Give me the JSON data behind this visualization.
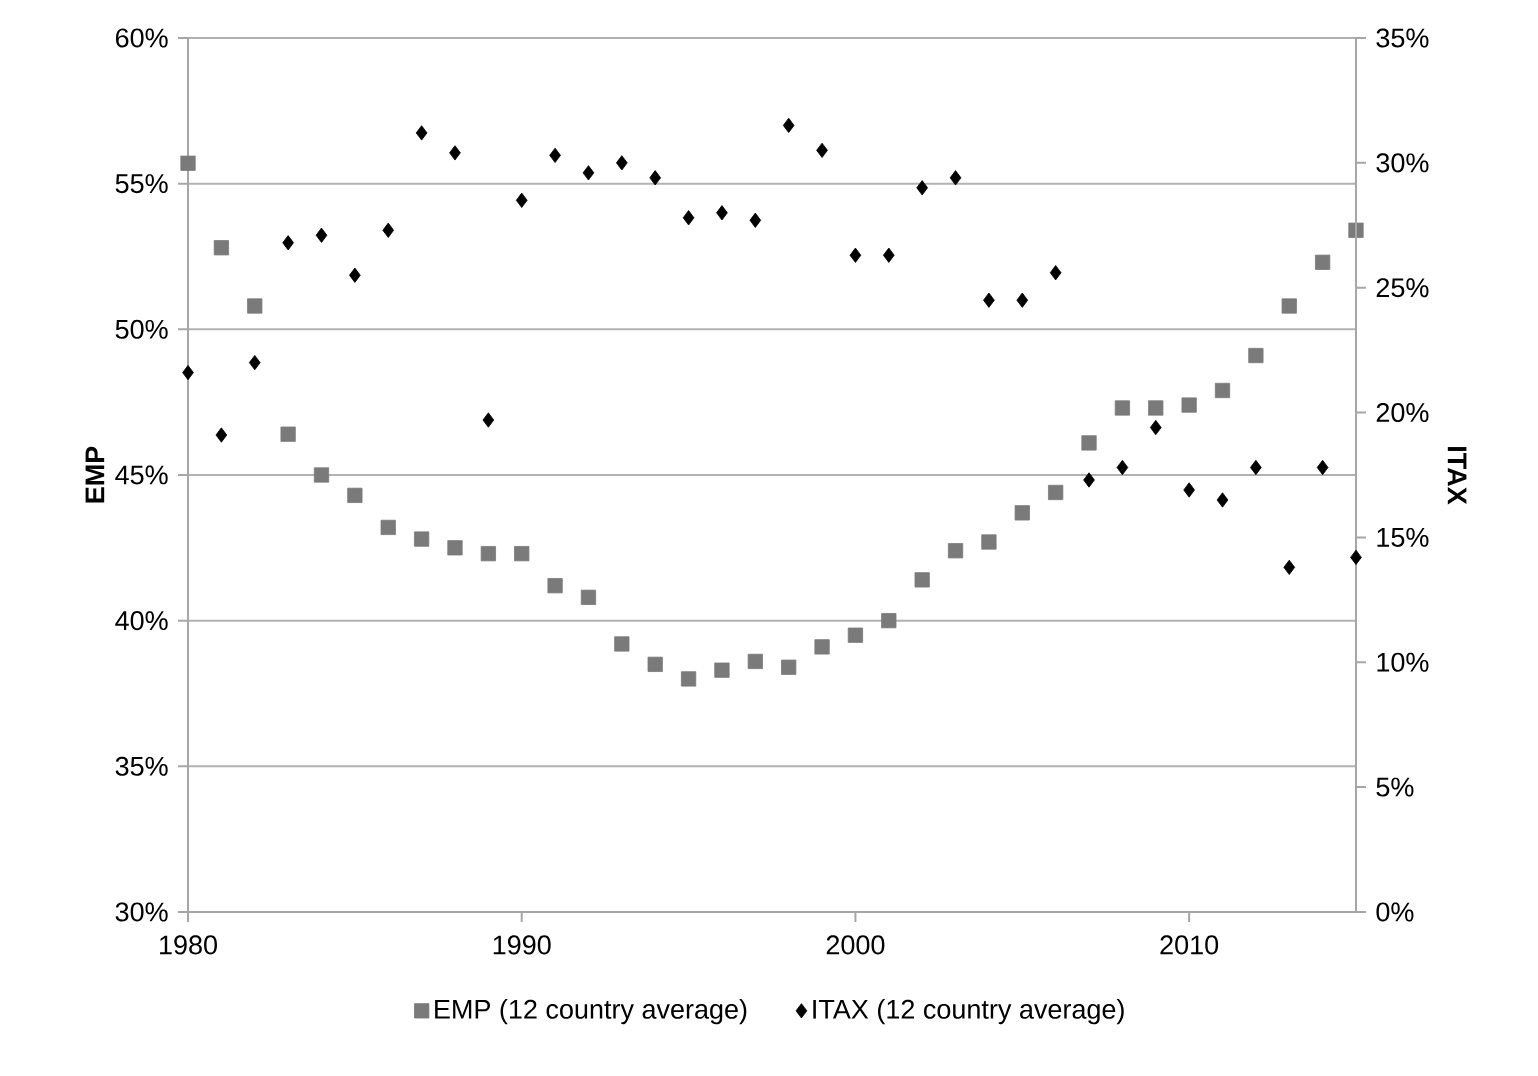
{
  "chart_data": {
    "type": "scatter",
    "ylabel": "EMP",
    "y2label": "ITAX",
    "x": [
      1980,
      1981,
      1982,
      1983,
      1984,
      1985,
      1986,
      1987,
      1988,
      1989,
      1990,
      1991,
      1992,
      1993,
      1994,
      1995,
      1996,
      1997,
      1998,
      1999,
      2000,
      2001,
      2002,
      2003,
      2004,
      2005,
      2006,
      2007,
      2008,
      2009,
      2010,
      2011,
      2012,
      2013,
      2014,
      2015
    ],
    "series": [
      {
        "name": "EMP (12 country average)",
        "color": "#7a7a7a",
        "marker": "square",
        "axis": "y",
        "values": [
          55.7,
          52.8,
          50.8,
          46.4,
          45.0,
          44.3,
          43.2,
          42.8,
          42.5,
          42.3,
          42.3,
          41.2,
          40.8,
          39.2,
          38.5,
          38.0,
          38.3,
          38.6,
          38.4,
          39.1,
          39.5,
          40.0,
          41.4,
          42.4,
          42.7,
          43.7,
          44.4,
          46.1,
          47.3,
          47.3,
          47.4,
          47.9,
          49.1,
          50.8,
          52.3,
          53.4
        ]
      },
      {
        "name": "ITAX (12 country average)",
        "color": "#000000",
        "marker": "diamond",
        "axis": "y2",
        "values": [
          21.6,
          19.1,
          22.0,
          26.8,
          27.1,
          25.5,
          27.3,
          31.2,
          30.4,
          19.7,
          28.5,
          30.3,
          29.6,
          30.0,
          29.4,
          27.8,
          28.0,
          27.7,
          31.5,
          30.5,
          26.3,
          26.3,
          29.0,
          29.4,
          24.5,
          24.5,
          25.6,
          17.3,
          17.8,
          19.4,
          16.9,
          16.5,
          17.8,
          13.8,
          17.8,
          14.2
        ]
      }
    ],
    "xlim": [
      1980,
      2015
    ],
    "xticks": [
      1980,
      1990,
      2000,
      2010
    ],
    "ylim": [
      30,
      60
    ],
    "yticks": [
      {
        "value": 30,
        "label": "30%"
      },
      {
        "value": 35,
        "label": "35%"
      },
      {
        "value": 40,
        "label": "40%"
      },
      {
        "value": 45,
        "label": "45%"
      },
      {
        "value": 50,
        "label": "50%"
      },
      {
        "value": 55,
        "label": "55%"
      },
      {
        "value": 60,
        "label": "60%"
      }
    ],
    "y2lim": [
      0,
      35
    ],
    "y2ticks": [
      {
        "value": 0,
        "label": "0%"
      },
      {
        "value": 5,
        "label": "5%"
      },
      {
        "value": 10,
        "label": "10%"
      },
      {
        "value": 15,
        "label": "15%"
      },
      {
        "value": 20,
        "label": "20%"
      },
      {
        "value": 25,
        "label": "25%"
      },
      {
        "value": 30,
        "label": "30%"
      },
      {
        "value": 35,
        "label": "35%"
      }
    ],
    "grid": "y",
    "legend": "bottom"
  }
}
